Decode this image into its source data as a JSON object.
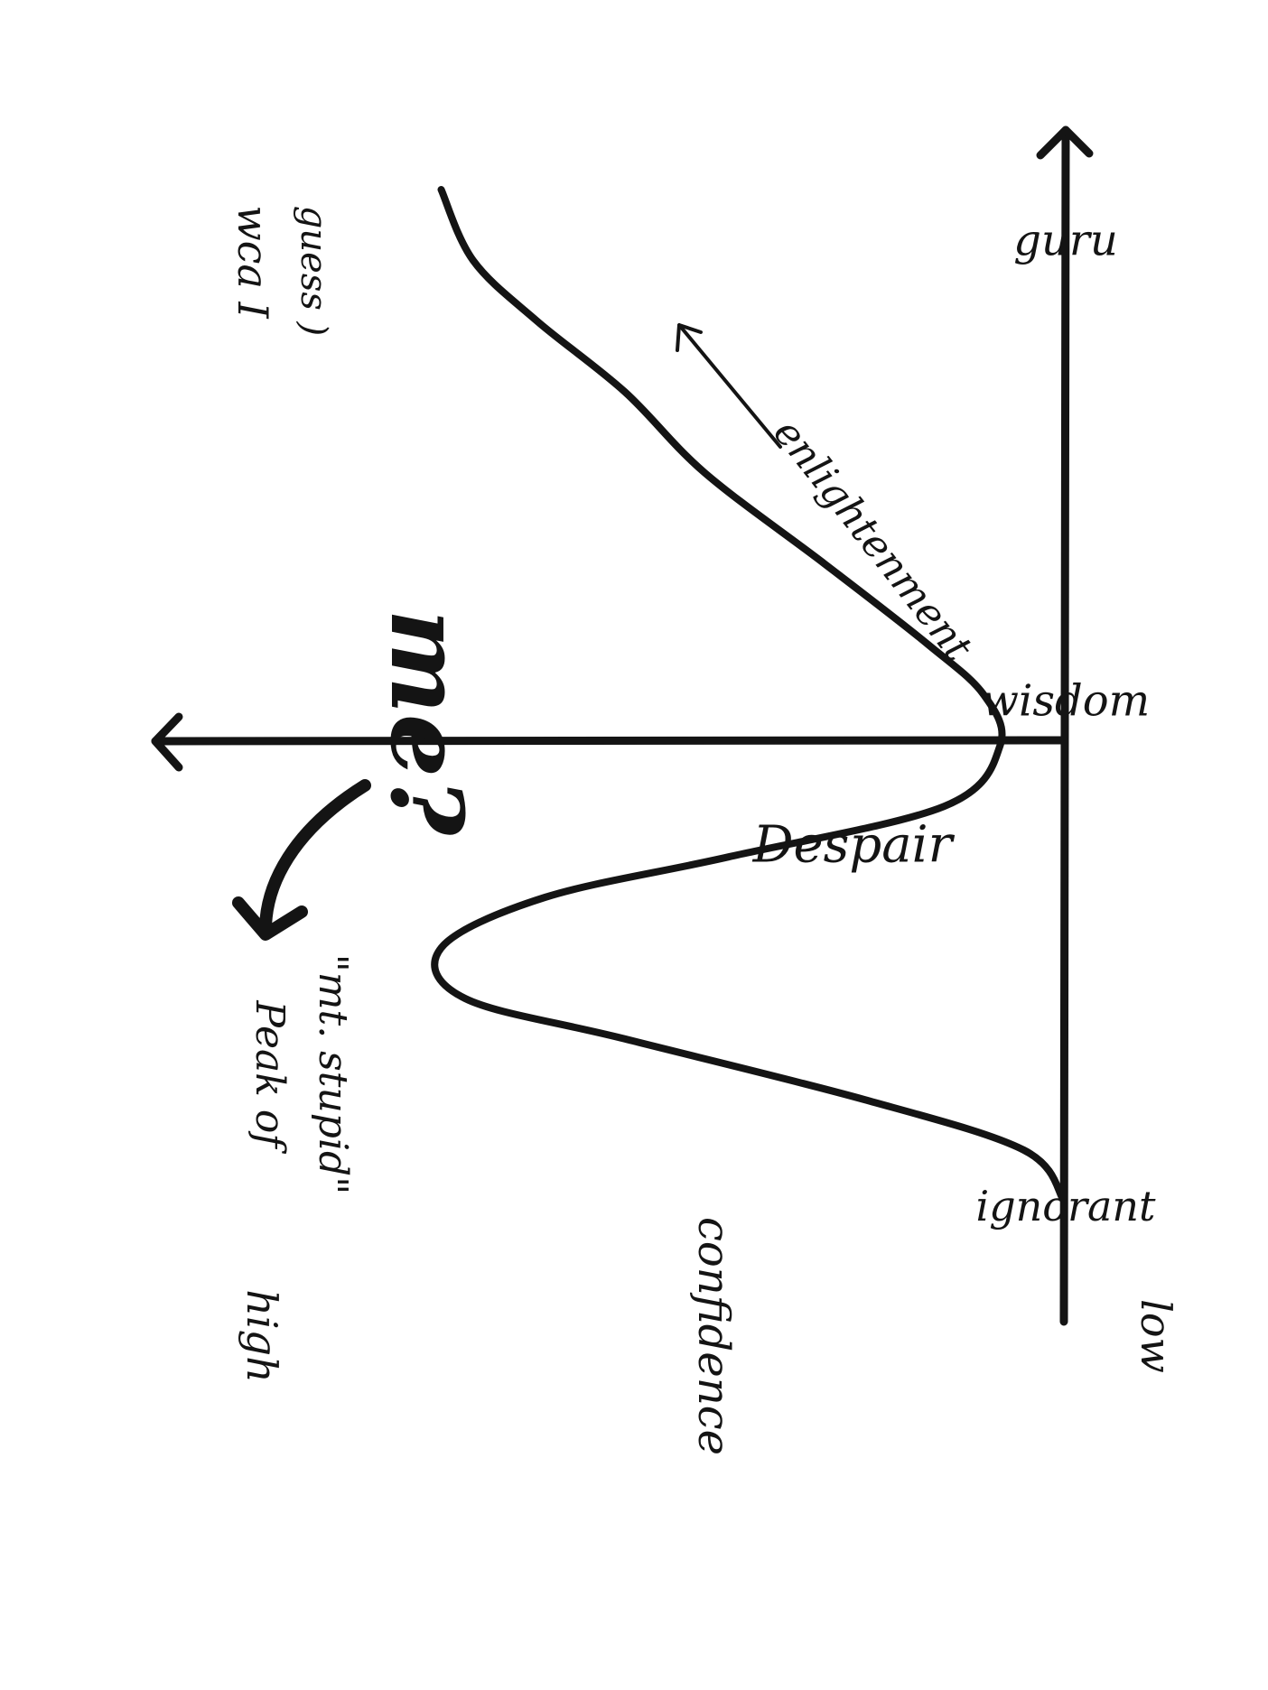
{
  "chart_data": {
    "type": "line",
    "title": "",
    "xlabel": "",
    "ylabel": "confidence",
    "x_ticks": [
      "ignorant",
      "wisdom",
      "guru"
    ],
    "y_ticks": [
      "low",
      "high"
    ],
    "grid": false,
    "legend": "none",
    "series": [
      {
        "x": [
          0,
          0.05,
          0.1,
          0.16,
          0.2,
          0.25,
          0.3,
          0.34,
          0.39,
          0.45,
          0.5,
          0.55,
          0.63,
          0.72,
          0.8,
          0.87,
          0.93,
          1.0
        ],
        "y": [
          0,
          0.05,
          0.25,
          0.55,
          0.75,
          0.78,
          0.65,
          0.42,
          0.15,
          0.08,
          0.1,
          0.17,
          0.3,
          0.45,
          0.55,
          0.66,
          0.74,
          0.78
        ]
      }
    ],
    "annotations": {
      "peak_line1": "Peak of",
      "peak_line2": "\"mt. stupid\"",
      "me": "me?",
      "despair": "Despair",
      "enlightenment": "enlightenment",
      "guru_line1": "wca I",
      "guru_line2": "guess )"
    },
    "colors": {
      "ink": "#141414",
      "paper": "#ffffff"
    }
  }
}
